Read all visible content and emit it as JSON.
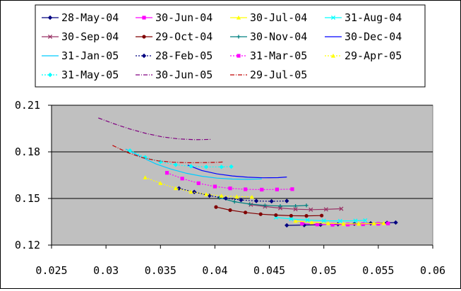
{
  "chart_data": {
    "type": "line",
    "title": "",
    "xlabel": "",
    "ylabel": "",
    "xlim": [
      0.025,
      0.06
    ],
    "ylim": [
      0.12,
      0.21
    ],
    "x_ticks": [
      0.025,
      0.03,
      0.035,
      0.04,
      0.045,
      0.05,
      0.055,
      0.06
    ],
    "x_tick_labels": [
      "0.025",
      "0.03",
      "0.035",
      "0.04",
      "0.045",
      "0.05",
      "0.055",
      "0.06"
    ],
    "y_ticks": [
      0.12,
      0.15,
      0.18,
      0.21
    ],
    "y_tick_labels": [
      "0.12",
      "0.15",
      "0.18",
      "0.21"
    ],
    "grid": "horizontal",
    "plot_background": "#c0c0c0",
    "legend_position": "top",
    "series": [
      {
        "name": "28-May-04",
        "color": "#000080",
        "dash": "solid",
        "marker": "diamond",
        "points": [
          [
            0.0466,
            0.1327
          ],
          [
            0.0482,
            0.1329
          ],
          [
            0.0497,
            0.1331
          ],
          [
            0.0513,
            0.1334
          ],
          [
            0.0528,
            0.1337
          ],
          [
            0.0543,
            0.134
          ],
          [
            0.0558,
            0.1343
          ],
          [
            0.0566,
            0.1345
          ]
        ]
      },
      {
        "name": "30-Jun-04",
        "color": "#ff00ff",
        "dash": "solid",
        "marker": "square",
        "points": [
          [
            0.048,
            0.1338
          ],
          [
            0.0494,
            0.1333
          ],
          [
            0.0508,
            0.1331
          ],
          [
            0.0522,
            0.1332
          ],
          [
            0.0536,
            0.1334
          ],
          [
            0.055,
            0.1337
          ],
          [
            0.0559,
            0.1339
          ]
        ]
      },
      {
        "name": "30-Jul-04",
        "color": "#ffff00",
        "dash": "solid",
        "marker": "triangle",
        "points": [
          [
            0.0474,
            0.1355
          ],
          [
            0.0489,
            0.1346
          ],
          [
            0.0504,
            0.134
          ],
          [
            0.0518,
            0.1337
          ],
          [
            0.0532,
            0.1337
          ],
          [
            0.0546,
            0.1339
          ],
          [
            0.0555,
            0.1341
          ]
        ]
      },
      {
        "name": "31-Aug-04",
        "color": "#00ffff",
        "dash": "solid",
        "marker": "x",
        "points": [
          [
            0.0456,
            0.1378
          ],
          [
            0.047,
            0.1368
          ],
          [
            0.0485,
            0.1361
          ],
          [
            0.05,
            0.1357
          ],
          [
            0.0515,
            0.1355
          ],
          [
            0.0529,
            0.1357
          ],
          [
            0.0538,
            0.1359
          ]
        ]
      },
      {
        "name": "30-Sep-04",
        "color": "#993366",
        "dash": "solid",
        "marker": "x",
        "points": [
          [
            0.0433,
            0.146
          ],
          [
            0.0446,
            0.1448
          ],
          [
            0.046,
            0.1438
          ],
          [
            0.0474,
            0.1431
          ],
          [
            0.0488,
            0.1428
          ],
          [
            0.0502,
            0.143
          ],
          [
            0.0516,
            0.1434
          ]
        ]
      },
      {
        "name": "29-Oct-04",
        "color": "#800000",
        "dash": "solid",
        "marker": "circle",
        "points": [
          [
            0.0401,
            0.1445
          ],
          [
            0.0414,
            0.1425
          ],
          [
            0.0428,
            0.141
          ],
          [
            0.0442,
            0.1399
          ],
          [
            0.0456,
            0.1393
          ],
          [
            0.047,
            0.1389
          ],
          [
            0.0484,
            0.1388
          ],
          [
            0.0498,
            0.139
          ]
        ]
      },
      {
        "name": "30-Nov-04",
        "color": "#008080",
        "dash": "solid",
        "marker": "plus",
        "points": [
          [
            0.0404,
            0.1505
          ],
          [
            0.0418,
            0.1479
          ],
          [
            0.0432,
            0.1464
          ],
          [
            0.0446,
            0.1455
          ],
          [
            0.046,
            0.1452
          ],
          [
            0.0474,
            0.1452
          ],
          [
            0.0484,
            0.1455
          ]
        ]
      },
      {
        "name": "30-Dec-04",
        "color": "#0000ff",
        "dash": "solid",
        "marker": "none",
        "points": [
          [
            0.0375,
            0.1715
          ],
          [
            0.0388,
            0.168
          ],
          [
            0.0402,
            0.1658
          ],
          [
            0.0416,
            0.1645
          ],
          [
            0.043,
            0.1637
          ],
          [
            0.0444,
            0.1633
          ],
          [
            0.0458,
            0.1634
          ],
          [
            0.0466,
            0.1638
          ]
        ]
      },
      {
        "name": "31-Jan-05",
        "color": "#00ccff",
        "dash": "solid",
        "marker": "none",
        "points": [
          [
            0.0318,
            0.1818
          ],
          [
            0.0332,
            0.1768
          ],
          [
            0.0346,
            0.1722
          ],
          [
            0.036,
            0.1688
          ],
          [
            0.0374,
            0.1662
          ],
          [
            0.0388,
            0.1643
          ],
          [
            0.0402,
            0.1631
          ],
          [
            0.0416,
            0.1625
          ],
          [
            0.043,
            0.1623
          ],
          [
            0.0443,
            0.1626
          ]
        ]
      },
      {
        "name": "28-Feb-05",
        "color": "#000080",
        "dash": "dotted",
        "marker": "diamond",
        "points": [
          [
            0.0367,
            0.1565
          ],
          [
            0.0381,
            0.1542
          ],
          [
            0.0395,
            0.1518
          ],
          [
            0.041,
            0.1501
          ],
          [
            0.0424,
            0.149
          ],
          [
            0.0438,
            0.1484
          ],
          [
            0.0452,
            0.1482
          ],
          [
            0.0466,
            0.1484
          ]
        ]
      },
      {
        "name": "31-Mar-05",
        "color": "#ff00ff",
        "dash": "dotted",
        "marker": "square",
        "points": [
          [
            0.0356,
            0.1665
          ],
          [
            0.037,
            0.1628
          ],
          [
            0.0385,
            0.1598
          ],
          [
            0.04,
            0.1577
          ],
          [
            0.0414,
            0.1565
          ],
          [
            0.0428,
            0.1559
          ],
          [
            0.0443,
            0.1557
          ],
          [
            0.0457,
            0.1558
          ],
          [
            0.0471,
            0.156
          ]
        ]
      },
      {
        "name": "29-Apr-05",
        "color": "#ffff00",
        "dash": "dotted",
        "marker": "triangle",
        "points": [
          [
            0.0336,
            0.1635
          ],
          [
            0.035,
            0.1598
          ],
          [
            0.0364,
            0.1566
          ],
          [
            0.0378,
            0.1543
          ],
          [
            0.0392,
            0.1527
          ],
          [
            0.0406,
            0.1517
          ],
          [
            0.042,
            0.1512
          ],
          [
            0.0434,
            0.151
          ]
        ]
      },
      {
        "name": "31-May-05",
        "color": "#00ffff",
        "dash": "dotted",
        "marker": "diamond",
        "points": [
          [
            0.0322,
            0.1808
          ],
          [
            0.0336,
            0.1765
          ],
          [
            0.035,
            0.1735
          ],
          [
            0.0364,
            0.1717
          ],
          [
            0.0378,
            0.1707
          ],
          [
            0.0392,
            0.1703
          ],
          [
            0.0406,
            0.1703
          ],
          [
            0.0415,
            0.1705
          ]
        ]
      },
      {
        "name": "30-Jun-05",
        "color": "#800080",
        "dash": "dashdot",
        "marker": "none",
        "points": [
          [
            0.0293,
            0.2018
          ],
          [
            0.0307,
            0.1982
          ],
          [
            0.0322,
            0.1947
          ],
          [
            0.0337,
            0.1918
          ],
          [
            0.0352,
            0.1896
          ],
          [
            0.0367,
            0.1883
          ],
          [
            0.0382,
            0.1878
          ],
          [
            0.0396,
            0.188
          ]
        ]
      },
      {
        "name": "29-Jul-05",
        "color": "#c00000",
        "dash": "dashdot",
        "marker": "none",
        "points": [
          [
            0.0306,
            0.1842
          ],
          [
            0.032,
            0.1795
          ],
          [
            0.0334,
            0.1762
          ],
          [
            0.0348,
            0.1742
          ],
          [
            0.0362,
            0.1733
          ],
          [
            0.0376,
            0.173
          ],
          [
            0.039,
            0.1731
          ],
          [
            0.0404,
            0.1733
          ],
          [
            0.0408,
            0.1735
          ]
        ]
      }
    ]
  }
}
